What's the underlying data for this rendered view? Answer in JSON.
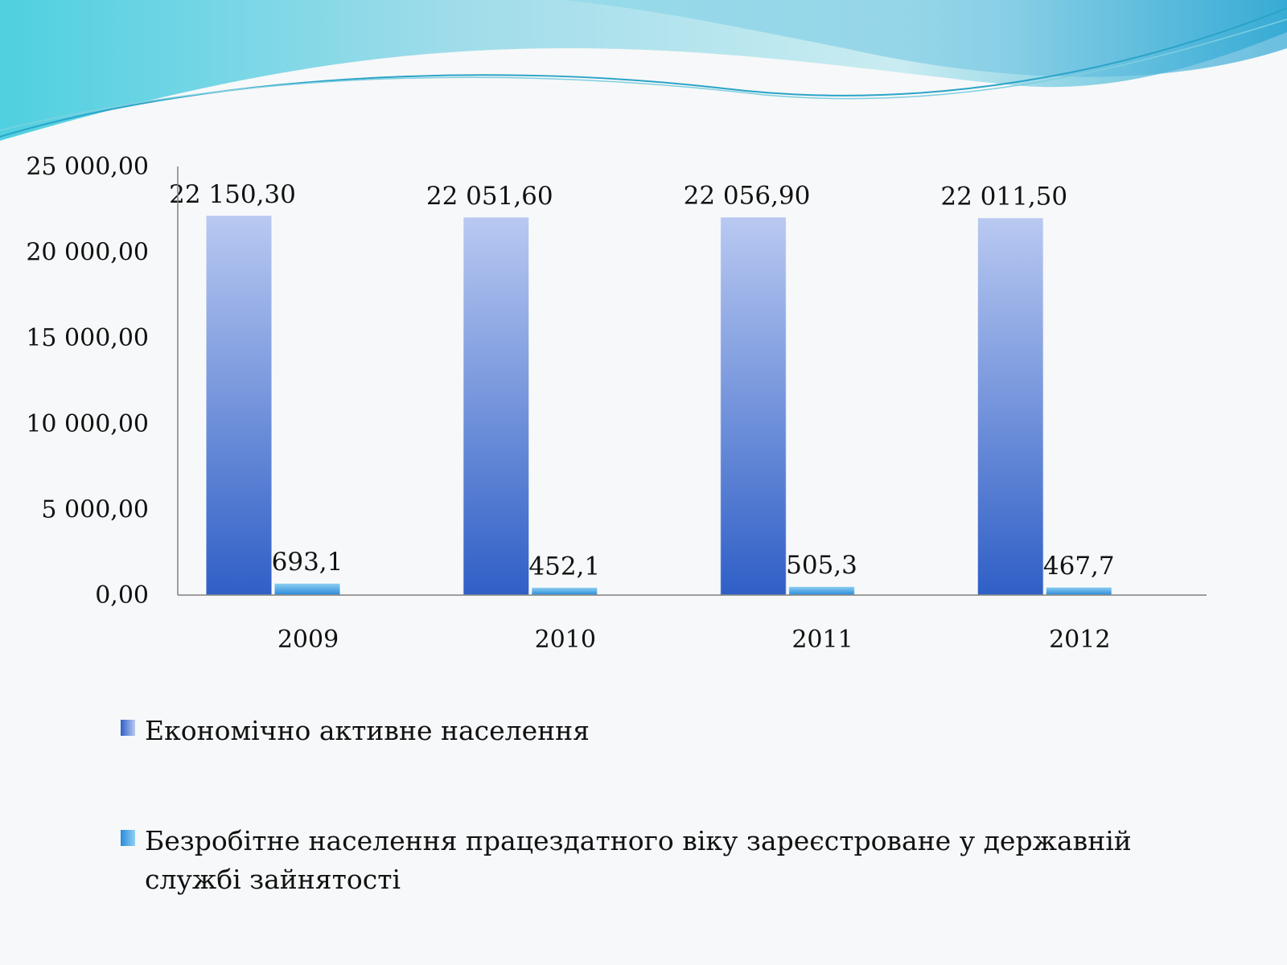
{
  "colors": {
    "series1_top": "#b9c9f1",
    "series1_bottom": "#2f5fc6",
    "series2_top": "#8fd0f3",
    "series2_bottom": "#2a8ad8",
    "axis": "#808080",
    "wave_light": "#b8eaf0",
    "wave_dark": "#3fb7d6"
  },
  "chart_data": {
    "type": "bar",
    "categories": [
      "2009",
      "2010",
      "2011",
      "2012"
    ],
    "series": [
      {
        "name": "Економічно активне населення",
        "values": [
          22150.3,
          22051.6,
          22056.9,
          22011.5
        ],
        "labels": [
          "22 150,30",
          "22 051,60",
          "22 056,90",
          "22 011,50"
        ],
        "color_key": "series1"
      },
      {
        "name": "Безробітне населення працездатного віку зареєстроване у державній службі зайнятості",
        "values": [
          693.1,
          452.1,
          505.3,
          467.7
        ],
        "labels": [
          "693,1",
          "452,1",
          "505,3",
          "467,7"
        ],
        "color_key": "series2"
      }
    ],
    "ylim": [
      0,
      25000
    ],
    "yticks": [
      0,
      5000,
      10000,
      15000,
      20000,
      25000
    ],
    "ytick_labels": [
      "0,00",
      "5 000,00",
      "10 000,00",
      "15 000,00",
      "20 000,00",
      "25 000,00"
    ],
    "grid": false,
    "legend_position": "bottom"
  }
}
